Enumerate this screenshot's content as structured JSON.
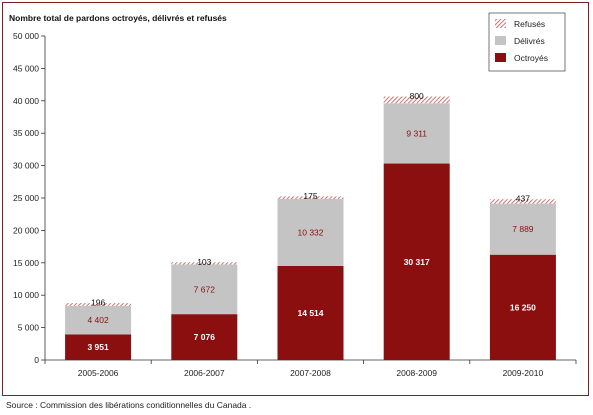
{
  "chart_data": {
    "type": "bar",
    "stacked": true,
    "title": "Nombre total de pardons octroyés, délivrés et refusés",
    "categories": [
      "2005-2006",
      "2006-2007",
      "2007-2008",
      "2008-2009",
      "2009-2010"
    ],
    "series": [
      {
        "name": "Octroyés",
        "values": [
          3951,
          7076,
          14514,
          30317,
          16250
        ],
        "labels": [
          "3 951",
          "7 076",
          "14 514",
          "30 317",
          "16 250"
        ]
      },
      {
        "name": "Délivrés",
        "values": [
          4402,
          7672,
          10332,
          9311,
          7889
        ],
        "labels": [
          "4 402",
          "7 672",
          "10 332",
          "9 311",
          "7 889"
        ]
      },
      {
        "name": "Refusés",
        "values": [
          196,
          103,
          175,
          800,
          437
        ],
        "labels": [
          "196",
          "103",
          "175",
          "800",
          "437"
        ]
      }
    ],
    "ylim": [
      0,
      50000
    ],
    "yticks": [
      0,
      5000,
      10000,
      15000,
      20000,
      25000,
      30000,
      35000,
      40000,
      45000,
      50000
    ],
    "ytick_labels": [
      "0",
      "5 000",
      "10 000",
      "15 000",
      "20 000",
      "25 000",
      "30 000",
      "35 000",
      "40 000",
      "45 000",
      "50 000"
    ],
    "legend_order": [
      "Refusés",
      "Délivrés",
      "Octroyés"
    ],
    "legend_position": "top-right",
    "grid": false,
    "colors": {
      "Octroyés": "#8b0f0f",
      "Délivrés": "#c4c4c4",
      "Refusés": "#c0504d",
      "frame": "#7b1f1f"
    }
  },
  "source": "Source : Commission des libérations conditionnelles du Canada ."
}
